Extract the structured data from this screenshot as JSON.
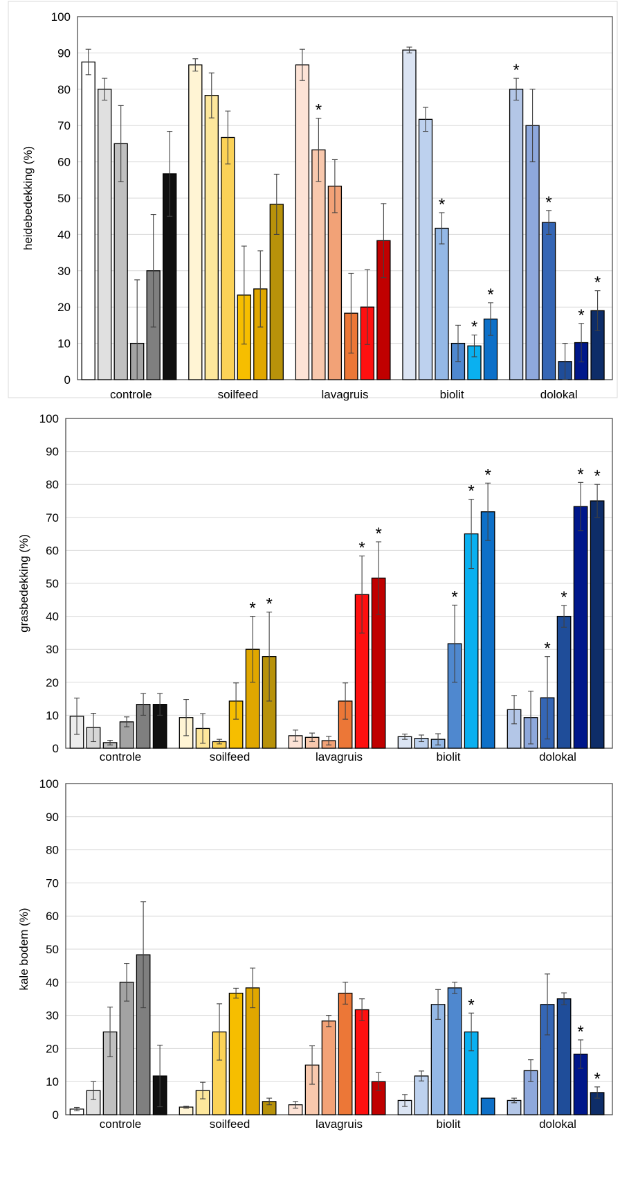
{
  "chart_data": [
    {
      "type": "bar",
      "ylabel": "heidebedekking (%)",
      "ylim": [
        0,
        100
      ],
      "yticks": [
        0,
        10,
        20,
        30,
        40,
        50,
        60,
        70,
        80,
        90,
        100
      ],
      "grid": true,
      "categories": [
        "controle",
        "soilfeed",
        "lavagruis",
        "biolit",
        "dolokal"
      ],
      "colors": {
        "controle": [
          "#ffffff",
          "#e0e0e0",
          "#c0c0c0",
          "#a3a3a3",
          "#7f7f7f",
          "#101010"
        ],
        "soilfeed": [
          "#fff4d4",
          "#fde79c",
          "#fbd257",
          "#f6be00",
          "#e0a700",
          "#b8920a"
        ],
        "lavagruis": [
          "#fde3d6",
          "#f8c8ad",
          "#f2a277",
          "#ec7737",
          "#fe1010",
          "#c00000"
        ],
        "biolit": [
          "#dbe4f3",
          "#bdd1ee",
          "#94b8e6",
          "#4f88cf",
          "#0ab0f0",
          "#0d70c8"
        ],
        "dolokal": [
          "#b3c6e7",
          "#8ea8dc",
          "#3566b5",
          "#1f4d99",
          "#00178a",
          "#0e2d68"
        ]
      },
      "values": [
        [
          87.5,
          80.0,
          65.0,
          10.0,
          30.0,
          56.7
        ],
        [
          86.7,
          78.3,
          66.7,
          23.3,
          25.0,
          48.3
        ],
        [
          86.7,
          63.3,
          53.3,
          18.3,
          20.0,
          38.3
        ],
        [
          90.8,
          71.7,
          41.7,
          10.0,
          9.3,
          16.7
        ],
        [
          80.0,
          70.0,
          43.3,
          5.0,
          10.2,
          19.0
        ]
      ],
      "errors": [
        [
          3.5,
          3.0,
          10.5,
          17.5,
          15.5,
          11.7
        ],
        [
          1.7,
          6.2,
          7.3,
          13.5,
          10.5,
          8.3
        ],
        [
          4.3,
          8.7,
          7.3,
          11.0,
          10.3,
          10.2
        ],
        [
          0.8,
          3.3,
          4.3,
          5.0,
          3.0,
          4.5
        ],
        [
          3.0,
          10.0,
          3.3,
          5.0,
          5.3,
          5.5
        ]
      ],
      "significant": [
        [
          false,
          false,
          false,
          false,
          false,
          false
        ],
        [
          false,
          false,
          false,
          false,
          false,
          false
        ],
        [
          false,
          true,
          false,
          false,
          false,
          false
        ],
        [
          false,
          false,
          true,
          false,
          true,
          true
        ],
        [
          true,
          false,
          true,
          false,
          true,
          true
        ]
      ],
      "asterisk": "*"
    },
    {
      "type": "bar",
      "ylabel": "grasbedekking (%)",
      "ylim": [
        0,
        100
      ],
      "yticks": [
        0,
        10,
        20,
        30,
        40,
        50,
        60,
        70,
        80,
        90,
        100
      ],
      "grid": true,
      "categories": [
        "controle",
        "soilfeed",
        "lavagruis",
        "biolit",
        "dolokal"
      ],
      "colors": {
        "controle": [
          "#ececec",
          "#d6d6d6",
          "#c0c0c0",
          "#a3a3a3",
          "#7f7f7f",
          "#101010"
        ],
        "soilfeed": [
          "#fff4d4",
          "#fde79c",
          "#fbd257",
          "#f6be00",
          "#e0a700",
          "#b8920a"
        ],
        "lavagruis": [
          "#fde3d6",
          "#f8c8ad",
          "#f2a277",
          "#ec7737",
          "#fe1010",
          "#c00000"
        ],
        "biolit": [
          "#dbe4f3",
          "#bdd1ee",
          "#94b8e6",
          "#4f88cf",
          "#0ab0f0",
          "#0d70c8"
        ],
        "dolokal": [
          "#b3c6e7",
          "#8ea8dc",
          "#3566b5",
          "#1f4d99",
          "#00178a",
          "#0e2d68"
        ]
      },
      "values": [
        [
          9.7,
          6.3,
          1.7,
          8.0,
          13.3,
          13.3
        ],
        [
          9.3,
          6.0,
          2.0,
          14.3,
          30.0,
          27.8
        ],
        [
          3.8,
          3.3,
          2.3,
          14.3,
          46.6,
          51.6
        ],
        [
          3.5,
          3.0,
          2.7,
          31.7,
          65.0,
          71.7
        ],
        [
          11.7,
          9.3,
          15.3,
          40.0,
          73.3,
          75.0
        ]
      ],
      "errors": [
        [
          5.5,
          4.3,
          0.7,
          1.5,
          3.3,
          3.3
        ],
        [
          5.5,
          4.5,
          0.7,
          5.5,
          10.0,
          13.5
        ],
        [
          1.7,
          1.3,
          1.3,
          5.5,
          11.7,
          11.0
        ],
        [
          0.8,
          1.0,
          1.7,
          11.7,
          10.5,
          8.7
        ],
        [
          4.3,
          8.0,
          12.5,
          3.3,
          7.3,
          5.0
        ]
      ],
      "significant": [
        [
          false,
          false,
          false,
          false,
          false,
          false
        ],
        [
          false,
          false,
          false,
          false,
          true,
          true
        ],
        [
          false,
          false,
          false,
          false,
          true,
          true
        ],
        [
          false,
          false,
          false,
          true,
          true,
          true
        ],
        [
          false,
          false,
          true,
          true,
          true,
          true
        ]
      ],
      "asterisk": "*"
    },
    {
      "type": "bar",
      "ylabel": "kale bodem (%)",
      "ylim": [
        0,
        100
      ],
      "yticks": [
        0,
        10,
        20,
        30,
        40,
        50,
        60,
        70,
        80,
        90,
        100
      ],
      "grid": true,
      "categories": [
        "controle",
        "soilfeed",
        "lavagruis",
        "biolit",
        "dolokal"
      ],
      "colors": {
        "controle": [
          "#ffffff",
          "#e0e0e0",
          "#c0c0c0",
          "#a3a3a3",
          "#7f7f7f",
          "#101010"
        ],
        "soilfeed": [
          "#fff4d4",
          "#fde79c",
          "#fbd257",
          "#f6be00",
          "#e0a700",
          "#b8920a"
        ],
        "lavagruis": [
          "#fde3d6",
          "#f8c8ad",
          "#f2a277",
          "#ec7737",
          "#fe1010",
          "#c00000"
        ],
        "biolit": [
          "#dbe4f3",
          "#bdd1ee",
          "#94b8e6",
          "#4f88cf",
          "#0ab0f0",
          "#0d70c8"
        ],
        "dolokal": [
          "#b3c6e7",
          "#8ea8dc",
          "#3566b5",
          "#1f4d99",
          "#00178a",
          "#0e2d68"
        ]
      },
      "values": [
        [
          1.7,
          7.3,
          25.0,
          40.0,
          48.3,
          11.7
        ],
        [
          2.3,
          7.3,
          25.0,
          36.7,
          38.3,
          4.0
        ],
        [
          3.0,
          15.0,
          28.3,
          36.7,
          31.7,
          10.0
        ],
        [
          4.3,
          11.7,
          33.3,
          38.3,
          25.0,
          5.0
        ],
        [
          4.3,
          13.3,
          33.3,
          35.0,
          18.3,
          6.7
        ]
      ],
      "errors": [
        [
          0.5,
          2.7,
          7.5,
          5.7,
          16.0,
          9.3
        ],
        [
          0.3,
          2.5,
          8.5,
          1.5,
          6.0,
          1.0
        ],
        [
          1.0,
          5.8,
          1.7,
          3.3,
          3.3,
          2.7
        ],
        [
          1.8,
          1.5,
          4.5,
          1.7,
          5.7,
          0.0
        ],
        [
          0.7,
          3.3,
          9.2,
          1.8,
          4.3,
          1.7
        ]
      ],
      "significant": [
        [
          false,
          false,
          false,
          false,
          false,
          false
        ],
        [
          false,
          false,
          false,
          false,
          false,
          false
        ],
        [
          false,
          false,
          false,
          false,
          false,
          false
        ],
        [
          false,
          false,
          false,
          false,
          true,
          false
        ],
        [
          false,
          false,
          false,
          false,
          true,
          true
        ]
      ],
      "asterisk": "*"
    }
  ]
}
